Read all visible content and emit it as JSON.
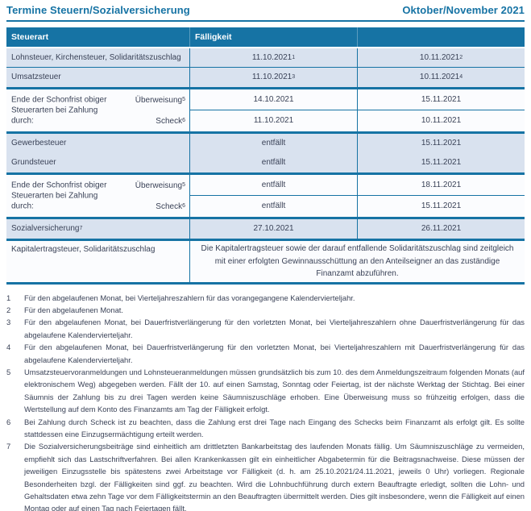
{
  "header": {
    "title": "Termine Steuern/Sozialversicherung",
    "period": "Oktober/November 2021"
  },
  "colors": {
    "accent_blue": "#1673a4",
    "row_blue": "#d9e2ef",
    "row_white": "#fbfcfe",
    "header_text": "#ffffff",
    "body_text": "#3a4257"
  },
  "table": {
    "columns": {
      "steuerart": "Steuerart",
      "faelligkeit": "Fälligkeit"
    },
    "rows": {
      "lohnsteuer": {
        "label": "Lohnsteuer, Kirchensteuer, Solidaritätszuschlag",
        "oct": "11.10.2021",
        "oct_sup": "1",
        "nov": "10.11.2021",
        "nov_sup": "2"
      },
      "umsatzsteuer": {
        "label": "Umsatzsteuer",
        "oct": "11.10.2021",
        "oct_sup": "3",
        "nov": "10.11.2021",
        "nov_sup": "4"
      },
      "schonfrist1": {
        "label": "Ende der Schonfrist obiger Steuerarten bei Zahlung durch:",
        "ueberweisung_label": "Überweisung",
        "ueberweisung_sup": "5",
        "ueberweisung_oct": "14.10.2021",
        "ueberweisung_nov": "15.11.2021",
        "scheck_label": "Scheck",
        "scheck_sup": "6",
        "scheck_oct": "11.10.2021",
        "scheck_nov": "10.11.2021"
      },
      "gewerbesteuer": {
        "label": "Gewerbesteuer",
        "oct": "entfällt",
        "nov": "15.11.2021"
      },
      "grundsteuer": {
        "label": "Grundsteuer",
        "oct": "entfällt",
        "nov": "15.11.2021"
      },
      "schonfrist2": {
        "label": "Ende der Schonfrist obiger Steuerarten bei Zahlung durch:",
        "ueberweisung_label": "Überweisung",
        "ueberweisung_sup": "5",
        "ueberweisung_oct": "entfällt",
        "ueberweisung_nov": "18.11.2021",
        "scheck_label": "Scheck",
        "scheck_sup": "6",
        "scheck_oct": "entfällt",
        "scheck_nov": "15.11.2021"
      },
      "sozialversicherung": {
        "label": "Sozialversicherung",
        "sup": "7",
        "oct": "27.10.2021",
        "nov": "26.11.2021"
      },
      "kapitalertragsteuer": {
        "label": "Kapitalertragsteuer, Solidaritätszuschlag",
        "note": "Die Kapitalertragsteuer sowie der darauf entfallende Solidaritätszuschlag sind zeitgleich mit einer erfolgten Gewinnausschüttung an den Anteilseigner an das zuständige Finanzamt abzuführen."
      }
    }
  },
  "footnotes": [
    {
      "num": "1",
      "text": "Für den abgelaufenen Monat, bei Vierteljahreszahlern für das vorangegangene Kalendervierteljahr."
    },
    {
      "num": "2",
      "text": "Für den abgelaufenen Monat."
    },
    {
      "num": "3",
      "text": "Für den abgelaufenen Monat, bei Dauerfristverlängerung für den vorletzten Monat, bei Vierteljahreszahlern ohne Dauerfristverlängerung für das abgelaufene Kalendervierteljahr."
    },
    {
      "num": "4",
      "text": "Für den abgelaufenen Monat, bei Dauerfristverlängerung für den vorletzten Monat, bei Vierteljahreszahlern mit Dauerfristverlängerung für das abgelaufene Kalendervierteljahr."
    },
    {
      "num": "5",
      "text": "Umsatzsteuervoranmeldungen und Lohnsteueranmeldungen müssen grundsätzlich bis zum 10. des dem Anmeldungszeitraum folgenden Monats (auf elektronischem Weg) abgegeben werden. Fällt der 10. auf einen Samstag, Sonntag oder Feiertag, ist der nächste Werktag der Stichtag. Bei einer Säumnis der Zahlung bis zu drei Tagen werden keine Säumniszuschläge erhoben. Eine Überweisung muss so frühzeitig erfolgen, dass die Wertstellung auf dem Konto des Finanzamts am Tag der Fälligkeit erfolgt."
    },
    {
      "num": "6",
      "text": "Bei Zahlung durch Scheck ist zu beachten, dass die Zahlung erst drei Tage nach Eingang des Schecks beim Finanzamt als erfolgt gilt. Es sollte stattdessen eine Einzugsermächtigung erteilt werden."
    },
    {
      "num": "7",
      "text": "Die Sozialversicherungsbeiträge sind einheitlich am drittletzten Bankarbeitstag des laufenden Monats fällig. Um Säumniszuschläge zu vermeiden, empfiehlt sich das Lastschriftverfahren. Bei allen Krankenkassen gilt ein einheitlicher Abgabetermin für die Beitragsnachweise. Diese müssen der jeweiligen Einzugsstelle bis spätestens zwei Arbeitstage vor Fälligkeit (d. h. am 25.10.2021/24.11.2021, jeweils 0 Uhr) vorliegen. Regionale Besonderheiten bzgl. der Fälligkeiten sind ggf. zu beachten. Wird die Lohnbuchführung durch extern Beauftragte erledigt, sollten die Lohn- und Gehaltsdaten etwa zehn Tage vor dem Fälligkeitstermin an den Beauftragten übermittelt werden. Dies gilt insbesondere, wenn die Fälligkeit auf einen Montag oder auf einen Tag nach Feiertagen fällt."
    }
  ]
}
